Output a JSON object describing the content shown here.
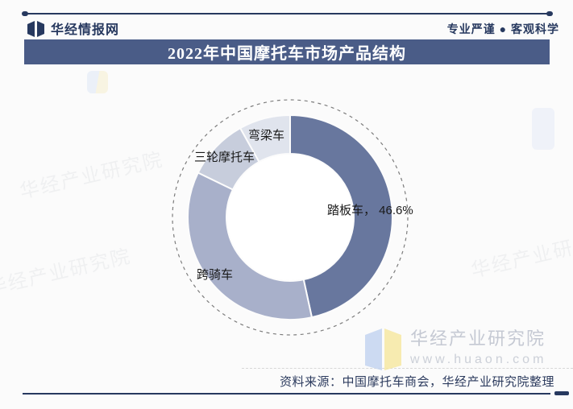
{
  "header": {
    "brand": "华经情报网",
    "slogan": "专业严谨 ● 客观科学",
    "accent_color": "#27395f"
  },
  "title": {
    "text": "2022年中国摩托车市场产品结构",
    "bg_color": "#4a5c87",
    "text_color": "#ffffff"
  },
  "chart_data": {
    "type": "pie",
    "donut": true,
    "title": "2022年中国摩托车市场产品结构",
    "start_angle_deg": 0,
    "direction": "clockwise",
    "categories": [
      "踏板车",
      "跨骑车",
      "三轮摩托车",
      "弯梁车"
    ],
    "values": [
      46.6,
      35.6,
      9.7,
      8.1
    ],
    "unit": "%",
    "colors": [
      "#68779e",
      "#a8b0ca",
      "#c7cddc",
      "#e0e4ed"
    ],
    "slice_labels": [
      "踏板车， 46.6%",
      "跨骑车",
      "三轮摩托车",
      "弯梁车"
    ],
    "labeled_value_note": "踏板车 46.6%",
    "legend": "none",
    "outline": "dashed circle around donut",
    "dash_circle_color": "#7d7d7d",
    "label_color": "#1a1a1a"
  },
  "watermark": {
    "name": "华经产业研究院",
    "url": "www.huaon.com"
  },
  "footer": {
    "source": "资料来源：中国摩托车商会，华经产业研究院整理"
  }
}
